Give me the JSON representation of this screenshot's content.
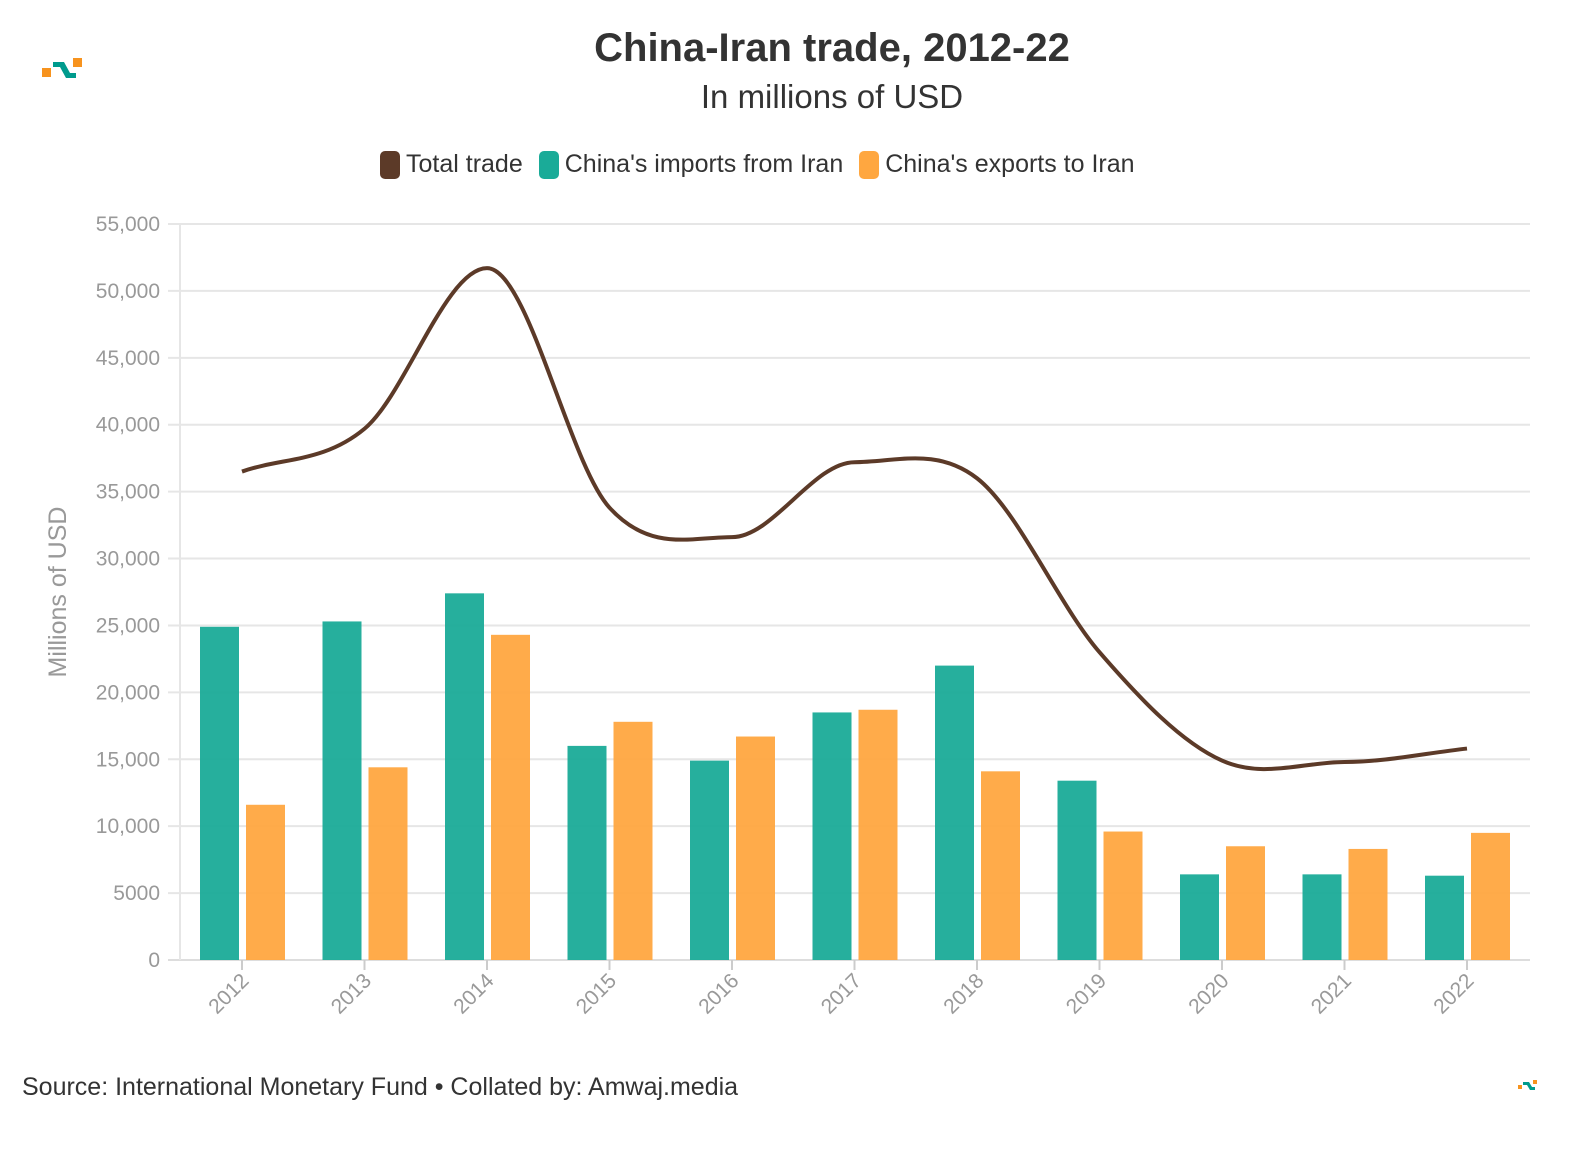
{
  "chart_data": {
    "type": "bar",
    "title": "China-Iran trade, 2012-22",
    "subtitle": "In millions of USD",
    "ylabel": "Millions of USD",
    "xlabel": "",
    "ylim": [
      0,
      55000
    ],
    "yticks": [
      "0",
      "5000",
      "10,000",
      "15,000",
      "20,000",
      "25,000",
      "30,000",
      "35,000",
      "40,000",
      "45,000",
      "50,000",
      "55,000"
    ],
    "grid": true,
    "legend_position": "top",
    "categories": [
      "2012",
      "2013",
      "2014",
      "2015",
      "2016",
      "2017",
      "2018",
      "2019",
      "2020",
      "2021",
      "2022"
    ],
    "series": [
      {
        "name": "Total trade",
        "type": "line",
        "color": "#5c3a28",
        "values": [
          36500,
          39700,
          51700,
          33800,
          31600,
          37200,
          36000,
          23000,
          14900,
          14800,
          15800
        ]
      },
      {
        "name": "China's imports from Iran",
        "type": "bar",
        "color": "#1aab98",
        "values": [
          24900,
          25300,
          27400,
          16000,
          14900,
          18500,
          22000,
          13400,
          6400,
          6400,
          6300
        ]
      },
      {
        "name": "China's exports to Iran",
        "type": "bar",
        "color": "#ffa740",
        "values": [
          11600,
          14400,
          24300,
          17800,
          16700,
          18700,
          14100,
          9600,
          8500,
          8300,
          9500
        ]
      }
    ]
  },
  "source": "Source: International Monetary Fund • Collated by: Amwaj.media",
  "logo_colors": {
    "orange": "#f7931e",
    "teal": "#009b8d"
  }
}
